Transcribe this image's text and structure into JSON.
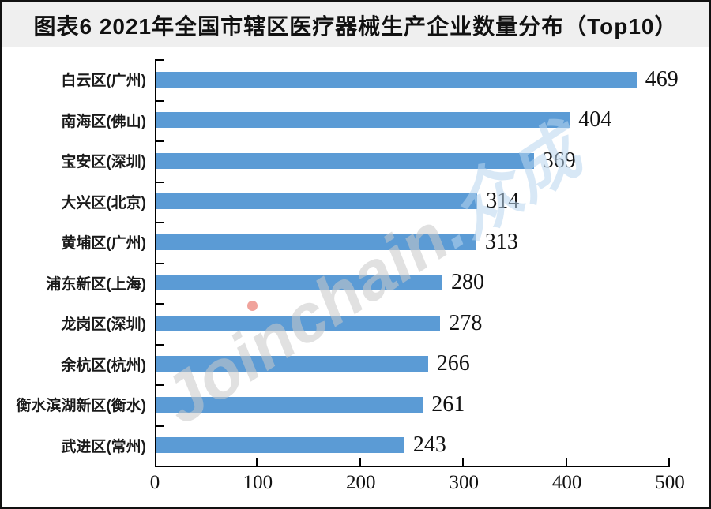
{
  "title": "图表6  2021年全国市辖区医疗器械生产企业数量分布（Top10）",
  "watermark": {
    "text_main": "Joinchain",
    "text_suffix": ".众成",
    "dot_color": "#e4574a",
    "main_color": "#c9c9c9",
    "suffix_color": "#b9d6ef"
  },
  "chart_data": {
    "type": "bar",
    "orientation": "horizontal",
    "title": "图表6  2021年全国市辖区医疗器械生产企业数量分布（Top10）",
    "categories": [
      "白云区(广州)",
      "南海区(佛山)",
      "宝安区(深圳)",
      "大兴区(北京)",
      "黄埔区(广州)",
      "浦东新区(上海)",
      "龙岗区(深圳)",
      "余杭区(杭州)",
      "衡水滨湖新区(衡水)",
      "武进区(常州)"
    ],
    "values": [
      469,
      404,
      369,
      314,
      313,
      280,
      278,
      266,
      261,
      243
    ],
    "xlabel": "",
    "ylabel": "",
    "xlim": [
      0,
      500
    ],
    "x_ticks": [
      0,
      100,
      200,
      300,
      400,
      500
    ],
    "bar_color": "#5B9BD5",
    "grid": false,
    "legend": false,
    "value_labels_shown": true
  }
}
